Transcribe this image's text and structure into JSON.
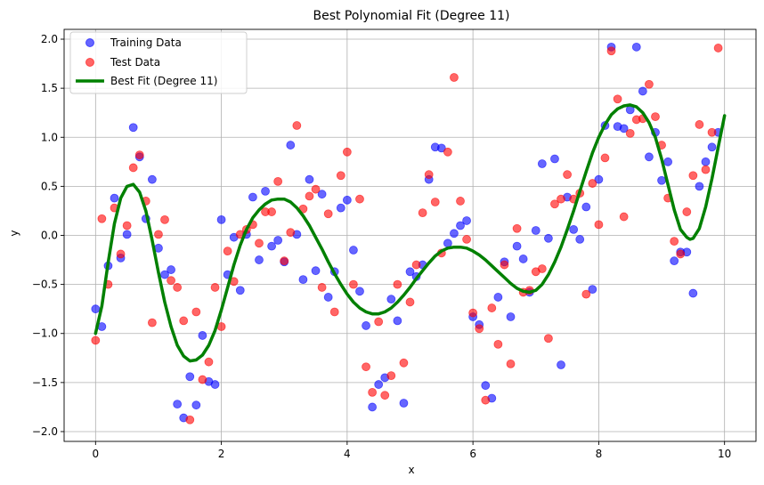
{
  "chart_data": {
    "type": "scatter",
    "title": "Best Polynomial Fit (Degree 11)",
    "xlabel": "x",
    "ylabel": "y",
    "xlim": [
      -0.5,
      10.5
    ],
    "ylim": [
      -2.1,
      2.1
    ],
    "xticks": [
      0,
      2,
      4,
      6,
      8,
      10
    ],
    "xtick_labels": [
      "0",
      "2",
      "4",
      "6",
      "8",
      "10"
    ],
    "yticks": [
      -2.0,
      -1.5,
      -1.0,
      -0.5,
      0.0,
      0.5,
      1.0,
      1.5,
      2.0
    ],
    "ytick_labels": [
      "−2.0",
      "−1.5",
      "−1.0",
      "−0.5",
      "0.0",
      "0.5",
      "1.0",
      "1.5",
      "2.0"
    ],
    "grid": true,
    "legend_position": "top-left",
    "series": [
      {
        "name": "Training Data",
        "kind": "scatter",
        "color": "#0000ff",
        "points": [
          [
            0.0,
            -0.75
          ],
          [
            0.1,
            -0.93
          ],
          [
            0.2,
            -0.31
          ],
          [
            0.3,
            0.38
          ],
          [
            0.4,
            -0.23
          ],
          [
            0.5,
            0.01
          ],
          [
            0.6,
            1.1
          ],
          [
            0.7,
            0.8
          ],
          [
            0.8,
            0.17
          ],
          [
            0.9,
            0.57
          ],
          [
            1.0,
            -0.13
          ],
          [
            1.1,
            -0.4
          ],
          [
            1.2,
            -0.35
          ],
          [
            1.3,
            -1.72
          ],
          [
            1.4,
            -1.86
          ],
          [
            1.5,
            -1.44
          ],
          [
            1.6,
            -1.73
          ],
          [
            1.7,
            -1.02
          ],
          [
            1.8,
            -1.49
          ],
          [
            1.9,
            -1.52
          ],
          [
            2.0,
            0.16
          ],
          [
            2.1,
            -0.4
          ],
          [
            2.2,
            -0.02
          ],
          [
            2.3,
            -0.56
          ],
          [
            2.4,
            0.01
          ],
          [
            2.5,
            0.39
          ],
          [
            2.6,
            -0.25
          ],
          [
            2.7,
            0.45
          ],
          [
            2.8,
            -0.11
          ],
          [
            2.9,
            -0.05
          ],
          [
            3.0,
            -0.27
          ],
          [
            3.1,
            0.92
          ],
          [
            3.2,
            0.01
          ],
          [
            3.3,
            -0.45
          ],
          [
            3.4,
            0.57
          ],
          [
            3.5,
            -0.36
          ],
          [
            3.6,
            0.42
          ],
          [
            3.7,
            -0.63
          ],
          [
            3.8,
            -0.37
          ],
          [
            3.9,
            0.28
          ],
          [
            4.0,
            0.36
          ],
          [
            4.1,
            -0.15
          ],
          [
            4.2,
            -0.57
          ],
          [
            4.3,
            -0.92
          ],
          [
            4.4,
            -1.75
          ],
          [
            4.5,
            -1.52
          ],
          [
            4.6,
            -1.45
          ],
          [
            4.7,
            -0.65
          ],
          [
            4.8,
            -0.87
          ],
          [
            4.9,
            -1.71
          ],
          [
            5.0,
            -0.37
          ],
          [
            5.1,
            -0.42
          ],
          [
            5.2,
            -0.3
          ],
          [
            5.3,
            0.57
          ],
          [
            5.4,
            0.9
          ],
          [
            5.5,
            0.89
          ],
          [
            5.6,
            -0.08
          ],
          [
            5.7,
            0.02
          ],
          [
            5.8,
            0.1
          ],
          [
            5.9,
            0.15
          ],
          [
            6.0,
            -0.83
          ],
          [
            6.1,
            -0.91
          ],
          [
            6.2,
            -1.53
          ],
          [
            6.3,
            -1.66
          ],
          [
            6.4,
            -0.63
          ],
          [
            6.5,
            -0.27
          ],
          [
            6.6,
            -0.83
          ],
          [
            6.7,
            -0.11
          ],
          [
            6.8,
            -0.24
          ],
          [
            6.9,
            -0.58
          ],
          [
            7.0,
            0.05
          ],
          [
            7.1,
            0.73
          ],
          [
            7.2,
            -0.03
          ],
          [
            7.3,
            0.78
          ],
          [
            7.4,
            -1.32
          ],
          [
            7.5,
            0.39
          ],
          [
            7.6,
            0.06
          ],
          [
            7.7,
            -0.04
          ],
          [
            7.8,
            0.29
          ],
          [
            7.9,
            -0.55
          ],
          [
            8.0,
            0.57
          ],
          [
            8.1,
            1.12
          ],
          [
            8.2,
            1.92
          ],
          [
            8.3,
            1.11
          ],
          [
            8.4,
            1.09
          ],
          [
            8.5,
            1.28
          ],
          [
            8.6,
            1.92
          ],
          [
            8.7,
            1.47
          ],
          [
            8.8,
            0.8
          ],
          [
            8.9,
            1.05
          ],
          [
            9.0,
            0.56
          ],
          [
            9.1,
            0.75
          ],
          [
            9.2,
            -0.26
          ],
          [
            9.3,
            -0.17
          ],
          [
            9.4,
            -0.17
          ],
          [
            9.5,
            -0.59
          ],
          [
            9.6,
            0.5
          ],
          [
            9.7,
            0.75
          ],
          [
            9.8,
            0.9
          ],
          [
            9.9,
            1.05
          ]
        ]
      },
      {
        "name": "Test Data",
        "kind": "scatter",
        "color": "#ff0000",
        "points": [
          [
            0.0,
            -1.07
          ],
          [
            0.1,
            0.17
          ],
          [
            0.2,
            -0.5
          ],
          [
            0.3,
            0.28
          ],
          [
            0.4,
            -0.19
          ],
          [
            0.5,
            0.1
          ],
          [
            0.6,
            0.69
          ],
          [
            0.7,
            0.82
          ],
          [
            0.8,
            0.35
          ],
          [
            0.9,
            -0.89
          ],
          [
            1.0,
            0.01
          ],
          [
            1.1,
            0.16
          ],
          [
            1.2,
            -0.46
          ],
          [
            1.3,
            -0.53
          ],
          [
            1.4,
            -0.87
          ],
          [
            1.5,
            -1.88
          ],
          [
            1.6,
            -0.78
          ],
          [
            1.7,
            -1.47
          ],
          [
            1.8,
            -1.29
          ],
          [
            1.9,
            -0.53
          ],
          [
            2.0,
            -0.93
          ],
          [
            2.1,
            -0.16
          ],
          [
            2.2,
            -0.47
          ],
          [
            2.3,
            0.01
          ],
          [
            2.4,
            0.06
          ],
          [
            2.5,
            0.11
          ],
          [
            2.6,
            -0.08
          ],
          [
            2.7,
            0.24
          ],
          [
            2.8,
            0.24
          ],
          [
            2.9,
            0.55
          ],
          [
            3.0,
            -0.26
          ],
          [
            3.1,
            0.03
          ],
          [
            3.2,
            1.12
          ],
          [
            3.3,
            0.27
          ],
          [
            3.4,
            0.4
          ],
          [
            3.5,
            0.47
          ],
          [
            3.6,
            -0.53
          ],
          [
            3.7,
            0.22
          ],
          [
            3.8,
            -0.78
          ],
          [
            3.9,
            0.61
          ],
          [
            4.0,
            0.85
          ],
          [
            4.1,
            -0.5
          ],
          [
            4.2,
            0.37
          ],
          [
            4.3,
            -1.34
          ],
          [
            4.4,
            -1.6
          ],
          [
            4.5,
            -0.88
          ],
          [
            4.6,
            -1.63
          ],
          [
            4.7,
            -1.43
          ],
          [
            4.8,
            -0.5
          ],
          [
            4.9,
            -1.3
          ],
          [
            5.0,
            -0.68
          ],
          [
            5.1,
            -0.3
          ],
          [
            5.2,
            0.23
          ],
          [
            5.3,
            0.62
          ],
          [
            5.4,
            0.34
          ],
          [
            5.5,
            -0.18
          ],
          [
            5.6,
            0.85
          ],
          [
            5.7,
            1.61
          ],
          [
            5.8,
            0.35
          ],
          [
            5.9,
            -0.04
          ],
          [
            6.0,
            -0.79
          ],
          [
            6.1,
            -0.95
          ],
          [
            6.2,
            -1.68
          ],
          [
            6.3,
            -0.74
          ],
          [
            6.4,
            -1.11
          ],
          [
            6.5,
            -0.3
          ],
          [
            6.6,
            -1.31
          ],
          [
            6.7,
            0.07
          ],
          [
            6.8,
            -0.58
          ],
          [
            6.9,
            -0.56
          ],
          [
            7.0,
            -0.37
          ],
          [
            7.1,
            -0.34
          ],
          [
            7.2,
            -1.05
          ],
          [
            7.3,
            0.32
          ],
          [
            7.4,
            0.37
          ],
          [
            7.5,
            0.62
          ],
          [
            7.6,
            0.37
          ],
          [
            7.7,
            0.43
          ],
          [
            7.8,
            -0.6
          ],
          [
            7.9,
            0.53
          ],
          [
            8.0,
            0.11
          ],
          [
            8.1,
            0.79
          ],
          [
            8.2,
            1.88
          ],
          [
            8.3,
            1.39
          ],
          [
            8.4,
            0.19
          ],
          [
            8.5,
            1.04
          ],
          [
            8.6,
            1.18
          ],
          [
            8.7,
            1.19
          ],
          [
            8.8,
            1.54
          ],
          [
            8.9,
            1.21
          ],
          [
            9.0,
            0.92
          ],
          [
            9.1,
            0.38
          ],
          [
            9.2,
            -0.06
          ],
          [
            9.3,
            -0.19
          ],
          [
            9.4,
            0.24
          ],
          [
            9.5,
            0.61
          ],
          [
            9.6,
            1.13
          ],
          [
            9.7,
            0.67
          ],
          [
            9.8,
            1.05
          ],
          [
            9.9,
            1.91
          ]
        ]
      },
      {
        "name": "Best Fit (Degree 11)",
        "kind": "line",
        "color": "#008000",
        "points": [
          [
            0.0,
            -1.0
          ],
          [
            0.1,
            -0.72
          ],
          [
            0.2,
            -0.28
          ],
          [
            0.3,
            0.12
          ],
          [
            0.4,
            0.38
          ],
          [
            0.5,
            0.5
          ],
          [
            0.6,
            0.52
          ],
          [
            0.7,
            0.44
          ],
          [
            0.8,
            0.25
          ],
          [
            0.9,
            -0.05
          ],
          [
            1.0,
            -0.38
          ],
          [
            1.1,
            -0.68
          ],
          [
            1.2,
            -0.93
          ],
          [
            1.3,
            -1.12
          ],
          [
            1.4,
            -1.23
          ],
          [
            1.5,
            -1.28
          ],
          [
            1.6,
            -1.27
          ],
          [
            1.7,
            -1.22
          ],
          [
            1.8,
            -1.12
          ],
          [
            1.9,
            -0.97
          ],
          [
            2.0,
            -0.76
          ],
          [
            2.1,
            -0.53
          ],
          [
            2.2,
            -0.3
          ],
          [
            2.3,
            -0.1
          ],
          [
            2.4,
            0.06
          ],
          [
            2.5,
            0.18
          ],
          [
            2.6,
            0.26
          ],
          [
            2.7,
            0.32
          ],
          [
            2.8,
            0.36
          ],
          [
            2.9,
            0.37
          ],
          [
            3.0,
            0.37
          ],
          [
            3.1,
            0.34
          ],
          [
            3.2,
            0.28
          ],
          [
            3.3,
            0.2
          ],
          [
            3.4,
            0.1
          ],
          [
            3.5,
            -0.02
          ],
          [
            3.6,
            -0.14
          ],
          [
            3.7,
            -0.27
          ],
          [
            3.8,
            -0.39
          ],
          [
            3.9,
            -0.5
          ],
          [
            4.0,
            -0.6
          ],
          [
            4.1,
            -0.68
          ],
          [
            4.2,
            -0.74
          ],
          [
            4.3,
            -0.78
          ],
          [
            4.4,
            -0.8
          ],
          [
            4.5,
            -0.8
          ],
          [
            4.6,
            -0.78
          ],
          [
            4.7,
            -0.74
          ],
          [
            4.8,
            -0.68
          ],
          [
            4.9,
            -0.61
          ],
          [
            5.0,
            -0.53
          ],
          [
            5.1,
            -0.44
          ],
          [
            5.2,
            -0.36
          ],
          [
            5.3,
            -0.28
          ],
          [
            5.4,
            -0.21
          ],
          [
            5.5,
            -0.16
          ],
          [
            5.6,
            -0.13
          ],
          [
            5.7,
            -0.12
          ],
          [
            5.8,
            -0.12
          ],
          [
            5.9,
            -0.13
          ],
          [
            6.0,
            -0.16
          ],
          [
            6.1,
            -0.2
          ],
          [
            6.2,
            -0.25
          ],
          [
            6.3,
            -0.31
          ],
          [
            6.4,
            -0.37
          ],
          [
            6.5,
            -0.43
          ],
          [
            6.6,
            -0.49
          ],
          [
            6.7,
            -0.54
          ],
          [
            6.8,
            -0.57
          ],
          [
            6.9,
            -0.58
          ],
          [
            7.0,
            -0.56
          ],
          [
            7.1,
            -0.5
          ],
          [
            7.2,
            -0.4
          ],
          [
            7.3,
            -0.27
          ],
          [
            7.4,
            -0.12
          ],
          [
            7.5,
            0.06
          ],
          [
            7.6,
            0.25
          ],
          [
            7.7,
            0.45
          ],
          [
            7.8,
            0.65
          ],
          [
            7.9,
            0.84
          ],
          [
            8.0,
            1.0
          ],
          [
            8.1,
            1.13
          ],
          [
            8.2,
            1.23
          ],
          [
            8.3,
            1.29
          ],
          [
            8.4,
            1.32
          ],
          [
            8.5,
            1.33
          ],
          [
            8.6,
            1.31
          ],
          [
            8.7,
            1.25
          ],
          [
            8.8,
            1.15
          ],
          [
            8.9,
            1.0
          ],
          [
            9.0,
            0.78
          ],
          [
            9.1,
            0.52
          ],
          [
            9.2,
            0.26
          ],
          [
            9.3,
            0.06
          ],
          [
            9.4,
            -0.02
          ],
          [
            9.45,
            -0.04
          ],
          [
            9.5,
            -0.03
          ],
          [
            9.6,
            0.07
          ],
          [
            9.7,
            0.29
          ],
          [
            9.8,
            0.58
          ],
          [
            9.9,
            0.9
          ],
          [
            10.0,
            1.22
          ]
        ]
      }
    ]
  }
}
